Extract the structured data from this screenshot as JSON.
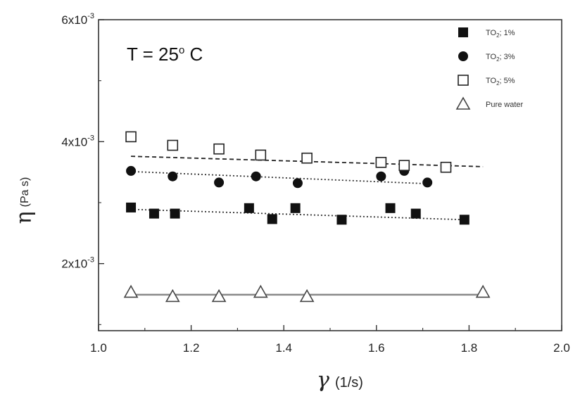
{
  "chart_data": {
    "type": "scatter",
    "annotation": "T = 25",
    "annotation_sup": "o",
    "annotation_tail": " C",
    "xlabel": "γ",
    "xunit": "(1/s)",
    "ylabel": "η",
    "yunit": "(Pa s)",
    "xlim": [
      1.0,
      2.0
    ],
    "ylim": [
      0.0009,
      0.006
    ],
    "x_ticks": [
      1.0,
      1.2,
      1.4,
      1.6,
      1.8,
      2.0
    ],
    "x_tick_labels": [
      "1.0",
      "1.2",
      "1.4",
      "1.6",
      "1.8",
      "2.0"
    ],
    "y_ticks": [
      0.002,
      0.004,
      0.006
    ],
    "y_tick_labels": [
      {
        "mant": "2x10",
        "exp": "-3"
      },
      {
        "mant": "4x10",
        "exp": "-3"
      },
      {
        "mant": "6x10",
        "exp": "-3"
      }
    ],
    "legend_position": "top-right",
    "grid": false,
    "series": [
      {
        "name": "TO2; 1%",
        "label_parts": [
          "TO",
          "2",
          "; 1%"
        ],
        "marker": "square-filled",
        "fit_style": "dotted",
        "x": [
          1.07,
          1.12,
          1.165,
          1.325,
          1.375,
          1.425,
          1.525,
          1.63,
          1.685,
          1.79
        ],
        "y": [
          0.00292,
          0.00282,
          0.00282,
          0.00291,
          0.00273,
          0.00291,
          0.00272,
          0.00291,
          0.00282,
          0.00272
        ],
        "fit": [
          [
            1.07,
            0.00289
          ],
          [
            1.79,
            0.00272
          ]
        ]
      },
      {
        "name": "TO2; 3%",
        "label_parts": [
          "TO",
          "2",
          "; 3%"
        ],
        "marker": "circle-filled",
        "fit_style": "dotted",
        "x": [
          1.07,
          1.16,
          1.26,
          1.34,
          1.43,
          1.61,
          1.66,
          1.71
        ],
        "y": [
          0.00352,
          0.00343,
          0.00333,
          0.00343,
          0.00332,
          0.00343,
          0.00352,
          0.00333
        ],
        "fit": [
          [
            1.07,
            0.00351
          ],
          [
            1.71,
            0.00331
          ]
        ]
      },
      {
        "name": "TO2; 5%",
        "label_parts": [
          "TO",
          "2",
          "; 5%"
        ],
        "marker": "square-open",
        "fit_style": "dashed",
        "x": [
          1.07,
          1.16,
          1.26,
          1.35,
          1.45,
          1.61,
          1.66,
          1.75
        ],
        "y": [
          0.00408,
          0.00394,
          0.00388,
          0.00378,
          0.00373,
          0.00366,
          0.00361,
          0.00358
        ],
        "fit": [
          [
            1.07,
            0.00376
          ],
          [
            1.83,
            0.00359
          ]
        ]
      },
      {
        "name": "Pure water",
        "label_parts": [
          "Pure water"
        ],
        "marker": "triangle-open",
        "fit_style": "solid",
        "x": [
          1.07,
          1.16,
          1.26,
          1.35,
          1.45,
          1.83
        ],
        "y": [
          0.00153,
          0.00146,
          0.00146,
          0.00153,
          0.00146,
          0.00153
        ],
        "fit": [
          [
            1.07,
            0.00149
          ],
          [
            1.83,
            0.00149
          ]
        ]
      }
    ]
  }
}
